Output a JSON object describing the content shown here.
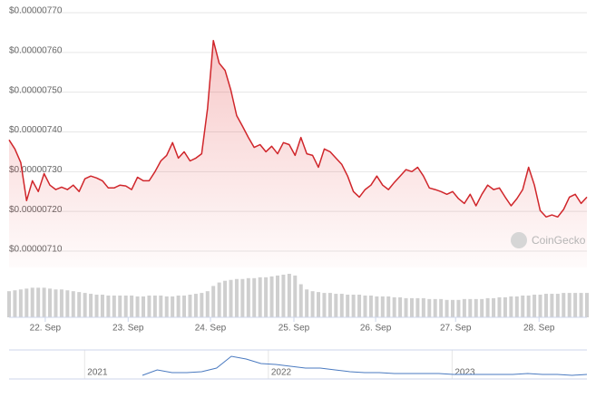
{
  "chart_data": {
    "type": "line",
    "series": [
      {
        "color": "#d0262b",
        "values": [
          7.38e-06,
          7.357e-06,
          7.323e-06,
          7.227e-06,
          7.277e-06,
          7.25e-06,
          7.295e-06,
          7.266e-06,
          7.255e-06,
          7.261e-06,
          7.255e-06,
          7.266e-06,
          7.25e-06,
          7.282e-06,
          7.289e-06,
          7.284e-06,
          7.277e-06,
          7.259e-06,
          7.259e-06,
          7.266e-06,
          7.264e-06,
          7.255e-06,
          7.286e-06,
          7.277e-06,
          7.277e-06,
          7.3e-06,
          7.327e-06,
          7.341e-06,
          7.373e-06,
          7.334e-06,
          7.35e-06,
          7.327e-06,
          7.334e-06,
          7.345e-06,
          7.459e-06,
          7.63e-06,
          7.573e-06,
          7.555e-06,
          7.505e-06,
          7.441e-06,
          7.414e-06,
          7.386e-06,
          7.361e-06,
          7.368e-06,
          7.35e-06,
          7.364e-06,
          7.345e-06,
          7.373e-06,
          7.368e-06,
          7.341e-06,
          7.386e-06,
          7.345e-06,
          7.341e-06,
          7.311e-06,
          7.357e-06,
          7.35e-06,
          7.334e-06,
          7.318e-06,
          7.289e-06,
          7.25e-06,
          7.236e-06,
          7.255e-06,
          7.266e-06,
          7.289e-06,
          7.266e-06,
          7.255e-06,
          7.273e-06,
          7.289e-06,
          7.305e-06,
          7.3e-06,
          7.311e-06,
          7.289e-06,
          7.259e-06,
          7.255e-06,
          7.25e-06,
          7.243e-06,
          7.25e-06,
          7.232e-06,
          7.22e-06,
          7.243e-06,
          7.214e-06,
          7.243e-06,
          7.266e-06,
          7.255e-06,
          7.259e-06,
          7.236e-06,
          7.214e-06,
          7.232e-06,
          7.255e-06,
          7.311e-06,
          7.266e-06,
          7.202e-06,
          7.186e-06,
          7.191e-06,
          7.186e-06,
          7.205e-06,
          7.236e-06,
          7.243e-06,
          7.22e-06,
          7.236e-06
        ]
      }
    ],
    "ylim": [
      7.1e-06,
      7.7e-06
    ],
    "yticks": [
      {
        "value": 7.1e-06,
        "label": "$0.00000710"
      },
      {
        "value": 7.2e-06,
        "label": "$0.00000720"
      },
      {
        "value": 7.3e-06,
        "label": "$0.00000730"
      },
      {
        "value": 7.4e-06,
        "label": "$0.00000740"
      },
      {
        "value": 7.5e-06,
        "label": "$0.00000750"
      },
      {
        "value": 7.6e-06,
        "label": "$0.00000760"
      },
      {
        "value": 7.7e-06,
        "label": "$0.00000770"
      }
    ],
    "xticks": [
      {
        "value": 6.2,
        "label": "22. Sep"
      },
      {
        "value": 20.4,
        "label": "23. Sep"
      },
      {
        "value": 34.5,
        "label": "24. Sep"
      },
      {
        "value": 48.8,
        "label": "25. Sep"
      },
      {
        "value": 62.8,
        "label": "26. Sep"
      },
      {
        "value": 76.5,
        "label": "27. Sep"
      },
      {
        "value": 90.8,
        "label": "28. Sep"
      }
    ],
    "grid": true,
    "volume": {
      "color": "#cfcfcf",
      "values": [
        30,
        31,
        32,
        33,
        34,
        34,
        34,
        33,
        32,
        32,
        31,
        30,
        29,
        28,
        27,
        26,
        26,
        25,
        25,
        25,
        25,
        25,
        24,
        24,
        25,
        25,
        25,
        24,
        24,
        25,
        25,
        26,
        27,
        28,
        30,
        36,
        40,
        42,
        43,
        44,
        44,
        45,
        45,
        46,
        46,
        47,
        48,
        49,
        50,
        48,
        38,
        32,
        30,
        29,
        28,
        28,
        27,
        27,
        26,
        26,
        26,
        25,
        25,
        24,
        24,
        24,
        23,
        23,
        22,
        22,
        22,
        22,
        21,
        21,
        21,
        20,
        20,
        20,
        21,
        21,
        21,
        21,
        22,
        22,
        23,
        23,
        24,
        24,
        25,
        25,
        26,
        26,
        27,
        27,
        27,
        28,
        28,
        28,
        28,
        28
      ]
    },
    "navigator": {
      "color": "#4a7ac0",
      "values": [
        null,
        null,
        null,
        null,
        null,
        null,
        null,
        null,
        null,
        4,
        10,
        7,
        7,
        8,
        12,
        25,
        22,
        17,
        16,
        14,
        12,
        12,
        10,
        8,
        7,
        7,
        6,
        6,
        6,
        6,
        5,
        5,
        5,
        5,
        5,
        6,
        5,
        5,
        4,
        5
      ],
      "xticks": [
        {
          "value": 5.1,
          "label": "2021"
        },
        {
          "value": 17.5,
          "label": "2022"
        },
        {
          "value": 29.9,
          "label": "2023"
        }
      ]
    },
    "watermark": "CoinGecko"
  }
}
